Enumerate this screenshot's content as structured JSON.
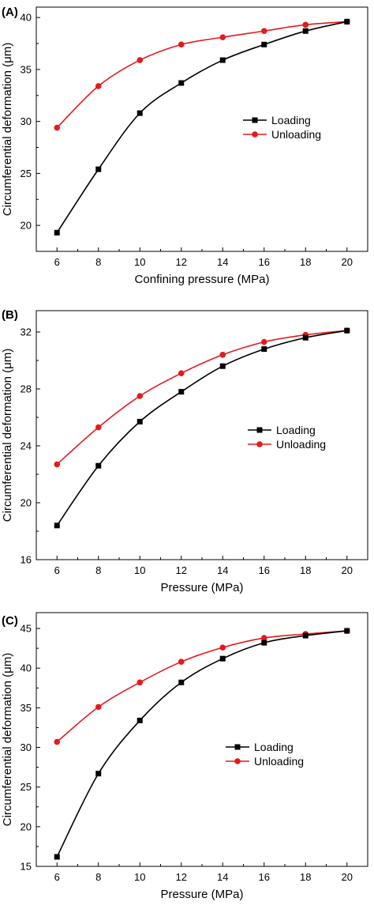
{
  "colors": {
    "loading": "#000000",
    "unloading": "#e41a1c"
  },
  "chart_data": [
    {
      "type": "line",
      "panel_label": "(A)",
      "xlabel": "Confining pressure (MPa)",
      "ylabel": "Circumferential deformation  (μm)",
      "x": [
        6,
        8,
        10,
        12,
        14,
        16,
        18,
        20
      ],
      "xlim": [
        5,
        21
      ],
      "ylim": [
        17.5,
        41
      ],
      "xticks": [
        6,
        8,
        10,
        12,
        14,
        16,
        18,
        20
      ],
      "yticks": [
        20,
        25,
        30,
        35,
        40
      ],
      "legend": "center-right",
      "grid": false,
      "series": [
        {
          "name": "Loading",
          "marker": "square",
          "values": [
            19.3,
            25.4,
            30.8,
            33.7,
            35.9,
            37.4,
            38.7,
            39.6
          ]
        },
        {
          "name": "Unloading",
          "marker": "circle",
          "values": [
            29.4,
            33.4,
            35.9,
            37.4,
            38.1,
            38.7,
            39.3,
            39.6
          ]
        }
      ]
    },
    {
      "type": "line",
      "panel_label": "(B)",
      "xlabel": "Pressure (MPa)",
      "ylabel": "Circumferential deformation  (μm)",
      "x": [
        6,
        8,
        10,
        12,
        14,
        16,
        18,
        20
      ],
      "xlim": [
        5,
        21
      ],
      "ylim": [
        16,
        33.5
      ],
      "xticks": [
        6,
        8,
        10,
        12,
        14,
        16,
        18,
        20
      ],
      "yticks": [
        16,
        20,
        24,
        28,
        32
      ],
      "legend": "center-right",
      "grid": false,
      "series": [
        {
          "name": "Loading",
          "marker": "square",
          "values": [
            18.4,
            22.6,
            25.7,
            27.8,
            29.6,
            30.8,
            31.6,
            32.1
          ]
        },
        {
          "name": "Unloading",
          "marker": "circle",
          "values": [
            22.7,
            25.3,
            27.5,
            29.1,
            30.4,
            31.3,
            31.8,
            32.1
          ]
        }
      ]
    },
    {
      "type": "line",
      "panel_label": "(C)",
      "xlabel": "Pressure (MPa)",
      "ylabel": "Circumferential deformation  (μm)",
      "x": [
        6,
        8,
        10,
        12,
        14,
        16,
        18,
        20
      ],
      "xlim": [
        5,
        21
      ],
      "ylim": [
        15,
        47
      ],
      "xticks": [
        6,
        8,
        10,
        12,
        14,
        16,
        18,
        20
      ],
      "yticks": [
        15,
        20,
        25,
        30,
        35,
        40,
        45
      ],
      "legend": "center-right",
      "grid": false,
      "series": [
        {
          "name": "Loading",
          "marker": "square",
          "values": [
            16.2,
            26.7,
            33.4,
            38.2,
            41.2,
            43.2,
            44.1,
            44.7
          ]
        },
        {
          "name": "Unloading",
          "marker": "circle",
          "values": [
            30.7,
            35.1,
            38.2,
            40.8,
            42.6,
            43.8,
            44.3,
            44.7
          ]
        }
      ]
    }
  ]
}
